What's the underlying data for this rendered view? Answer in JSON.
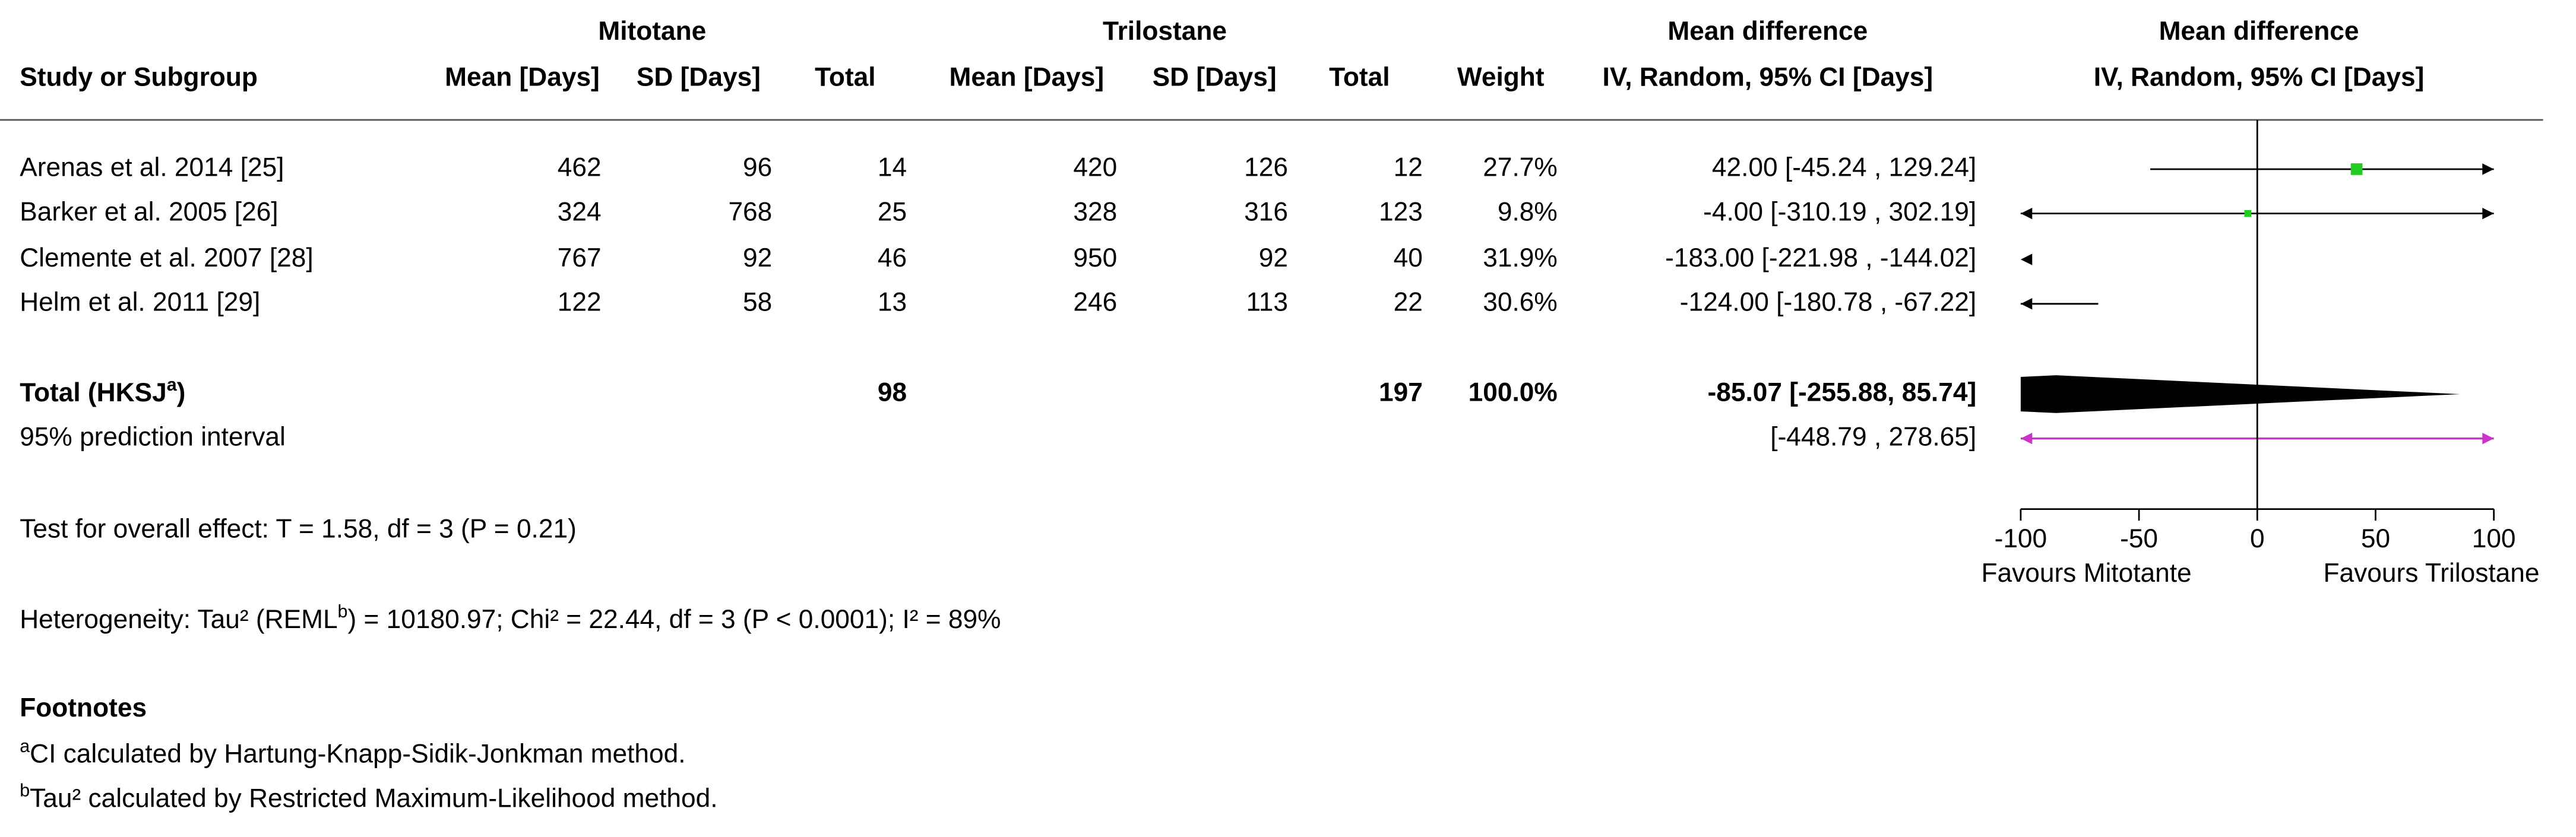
{
  "chart_data": {
    "type": "forest",
    "group_headers": [
      "Mitotane",
      "Trilostane",
      "Mean difference",
      "Mean difference"
    ],
    "columns": [
      "Study or Subgroup",
      "Mean [Days]",
      "SD [Days]",
      "Total",
      "Mean [Days]",
      "SD [Days]",
      "Total",
      "Weight",
      "IV, Random, 95% CI [Days]",
      "IV, Random, 95% CI [Days]"
    ],
    "rows": [
      [
        "Arenas et al. 2014 [25]",
        462,
        96,
        14,
        420,
        126,
        12
      ],
      [
        "Barker et al. 2005 [26]",
        324,
        768,
        25,
        328,
        316,
        123
      ],
      [
        "Clemente et al. 2007 [28]",
        767,
        92,
        46,
        950,
        92,
        40
      ],
      [
        "Helm et al. 2011 [29]",
        122,
        58,
        13,
        246,
        113,
        22
      ]
    ],
    "weights": [
      27.7,
      9.8,
      31.9,
      30.6
    ],
    "weight_labels": [
      "27.7%",
      "9.8%",
      "31.9%",
      "30.6%"
    ],
    "md": [
      42.0,
      -4.0,
      -183.0,
      -124.0
    ],
    "ci_low": [
      -45.24,
      -310.19,
      -221.98,
      -180.78
    ],
    "ci_high": [
      129.24,
      302.19,
      -144.02,
      -67.22
    ],
    "ci_labels": [
      "42.00 [-45.24 , 129.24]",
      "-4.00 [-310.19 , 302.19]",
      "-183.00 [-221.98 , -144.02]",
      "-124.00 [-180.78 , -67.22]"
    ],
    "color": "#22cc22",
    "total": {
      "label": "Total (HKSJ",
      "label_sup": "a",
      "label_end": ")",
      "total1": 98,
      "total2": 197,
      "weight": 100.0,
      "weight_label": "100.0%",
      "md": -85.07,
      "ci_low": -255.88,
      "ci_high": 85.74,
      "ci_label": "-85.07 [-255.88, 85.74]",
      "color": "#000000"
    },
    "prediction": {
      "label": "95% prediction interval",
      "low": -448.79,
      "high": 278.65,
      "ci_label": "[-448.79 , 278.65]",
      "color": "#cc33cc"
    },
    "overall_effect": "Test for overall effect: T = 1.58, df = 3 (P = 0.21)",
    "heterogeneity": {
      "start": "Heterogeneity: Tau² (REML",
      "sup": "b",
      "end": ") = 10180.97; Chi² = 22.44, df = 3 (P < 0.0001); I² = 89%"
    },
    "footnotes_title": "Footnotes",
    "footnotes": [
      {
        "sup": "a",
        "text": "CI calculated by Hartung-Knapp-Sidik-Jonkman method."
      },
      {
        "sup": "b",
        "text": "Tau² calculated by Restricted Maximum-Likelihood method."
      }
    ],
    "xlim": [
      -100,
      100
    ],
    "xticks": [
      -100,
      -50,
      0,
      50,
      100
    ],
    "xlabels": [
      "Favours Mitotante",
      "Favours Trilostane"
    ]
  }
}
